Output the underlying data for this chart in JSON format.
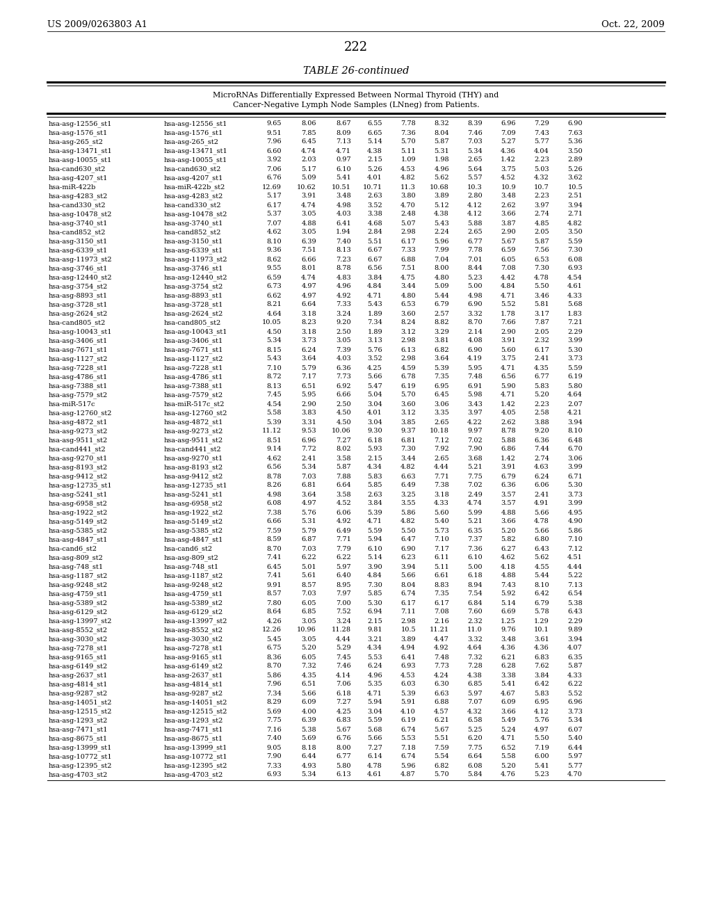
{
  "header_left": "US 2009/0263803 A1",
  "header_right": "Oct. 22, 2009",
  "page_number": "222",
  "table_title": "TABLE 26-continued",
  "table_subtitle1": "MicroRNAs Differentially Expressed Between Normal Thyroid (THY) and",
  "table_subtitle2": "Cancer-Negative Lymph Node Samples (LNneg) from Patients.",
  "rows": [
    [
      "hsa-asg-12556_st1",
      "hsa-asg-12556_st1",
      "9.65",
      "8.06",
      "8.67",
      "6.55",
      "7.78",
      "8.32",
      "8.39",
      "6.96",
      "7.29",
      "6.90"
    ],
    [
      "hsa-asg-1576_st1",
      "hsa-asg-1576_st1",
      "9.51",
      "7.85",
      "8.09",
      "6.65",
      "7.36",
      "8.04",
      "7.46",
      "7.09",
      "7.43",
      "7.63"
    ],
    [
      "hsa-asg-265_st2",
      "hsa-asg-265_st2",
      "7.96",
      "6.45",
      "7.13",
      "5.14",
      "5.70",
      "5.87",
      "7.03",
      "5.27",
      "5.77",
      "5.36"
    ],
    [
      "hsa-asg-13471_st1",
      "hsa-asg-13471_st1",
      "6.60",
      "4.74",
      "4.71",
      "4.38",
      "5.11",
      "5.31",
      "5.34",
      "4.36",
      "4.04",
      "3.50"
    ],
    [
      "hsa-asg-10055_st1",
      "hsa-asg-10055_st1",
      "3.92",
      "2.03",
      "0.97",
      "2.15",
      "1.09",
      "1.98",
      "2.65",
      "1.42",
      "2.23",
      "2.89"
    ],
    [
      "hsa-cand630_st2",
      "hsa-cand630_st2",
      "7.06",
      "5.17",
      "6.10",
      "5.26",
      "4.53",
      "4.96",
      "5.64",
      "3.75",
      "5.03",
      "5.26"
    ],
    [
      "hsa-asg-4207_st1",
      "hsa-asg-4207_st1",
      "6.76",
      "5.09",
      "5.41",
      "4.01",
      "4.82",
      "5.62",
      "5.57",
      "4.52",
      "4.32",
      "3.62"
    ],
    [
      "hsa-miR-422b",
      "hsa-miR-422b_st2",
      "12.69",
      "10.62",
      "10.51",
      "10.71",
      "11.3",
      "10.68",
      "10.3",
      "10.9",
      "10.7",
      "10.5"
    ],
    [
      "hsa-asg-4283_st2",
      "hsa-asg-4283_st2",
      "5.17",
      "3.91",
      "3.48",
      "2.63",
      "3.80",
      "3.89",
      "2.80",
      "3.48",
      "2.23",
      "2.51"
    ],
    [
      "hsa-cand330_st2",
      "hsa-cand330_st2",
      "6.17",
      "4.74",
      "4.98",
      "3.52",
      "4.70",
      "5.12",
      "4.12",
      "2.62",
      "3.97",
      "3.94"
    ],
    [
      "hsa-asg-10478_st2",
      "hsa-asg-10478_st2",
      "5.37",
      "3.05",
      "4.03",
      "3.38",
      "2.48",
      "4.38",
      "4.12",
      "3.66",
      "2.74",
      "2.71"
    ],
    [
      "hsa-asg-3740_st1",
      "hsa-asg-3740_st1",
      "7.07",
      "4.88",
      "6.41",
      "4.68",
      "5.07",
      "5.43",
      "5.88",
      "3.87",
      "4.85",
      "4.82"
    ],
    [
      "hsa-cand852_st2",
      "hsa-cand852_st2",
      "4.62",
      "3.05",
      "1.94",
      "2.84",
      "2.98",
      "2.24",
      "2.65",
      "2.90",
      "2.05",
      "3.50"
    ],
    [
      "hsa-asg-3150_st1",
      "hsa-asg-3150_st1",
      "8.10",
      "6.39",
      "7.40",
      "5.51",
      "6.17",
      "5.96",
      "6.77",
      "5.67",
      "5.87",
      "5.59"
    ],
    [
      "hsa-asg-6339_st1",
      "hsa-asg-6339_st1",
      "9.36",
      "7.51",
      "8.13",
      "6.67",
      "7.33",
      "7.99",
      "7.78",
      "6.59",
      "7.56",
      "7.30"
    ],
    [
      "hsa-asg-11973_st2",
      "hsa-asg-11973_st2",
      "8.62",
      "6.66",
      "7.23",
      "6.67",
      "6.88",
      "7.04",
      "7.01",
      "6.05",
      "6.53",
      "6.08"
    ],
    [
      "hsa-asg-3746_st1",
      "hsa-asg-3746_st1",
      "9.55",
      "8.01",
      "8.78",
      "6.56",
      "7.51",
      "8.00",
      "8.44",
      "7.08",
      "7.30",
      "6.93"
    ],
    [
      "hsa-asg-12440_st2",
      "hsa-asg-12440_st2",
      "6.59",
      "4.74",
      "4.83",
      "3.84",
      "4.75",
      "4.80",
      "5.23",
      "4.42",
      "4.78",
      "4.54"
    ],
    [
      "hsa-asg-3754_st2",
      "hsa-asg-3754_st2",
      "6.73",
      "4.97",
      "4.96",
      "4.84",
      "3.44",
      "5.09",
      "5.00",
      "4.84",
      "5.50",
      "4.61"
    ],
    [
      "hsa-asg-8893_st1",
      "hsa-asg-8893_st1",
      "6.62",
      "4.97",
      "4.92",
      "4.71",
      "4.80",
      "5.44",
      "4.98",
      "4.71",
      "3.46",
      "4.33"
    ],
    [
      "hsa-asg-3728_st1",
      "hsa-asg-3728_st1",
      "8.21",
      "6.64",
      "7.33",
      "5.43",
      "6.53",
      "6.79",
      "6.90",
      "5.52",
      "5.81",
      "5.68"
    ],
    [
      "hsa-asg-2624_st2",
      "hsa-asg-2624_st2",
      "4.64",
      "3.18",
      "3.24",
      "1.89",
      "3.60",
      "2.57",
      "3.32",
      "1.78",
      "3.17",
      "1.83"
    ],
    [
      "hsa-cand805_st2",
      "hsa-cand805_st2",
      "10.05",
      "8.23",
      "9.20",
      "7.34",
      "8.24",
      "8.82",
      "8.70",
      "7.66",
      "7.87",
      "7.21"
    ],
    [
      "hsa-asg-10043_st1",
      "hsa-asg-10043_st1",
      "4.50",
      "3.18",
      "2.50",
      "1.89",
      "3.12",
      "3.29",
      "2.14",
      "2.90",
      "2.05",
      "2.29"
    ],
    [
      "hsa-asg-3406_st1",
      "hsa-asg-3406_st1",
      "5.34",
      "3.73",
      "3.05",
      "3.13",
      "2.98",
      "3.81",
      "4.08",
      "3.91",
      "2.32",
      "3.99"
    ],
    [
      "hsa-asg-7671_st1",
      "hsa-asg-7671_st1",
      "8.15",
      "6.24",
      "7.39",
      "5.76",
      "6.13",
      "6.82",
      "6.90",
      "5.60",
      "6.17",
      "5.30"
    ],
    [
      "hsa-asg-1127_st2",
      "hsa-asg-1127_st2",
      "5.43",
      "3.64",
      "4.03",
      "3.52",
      "2.98",
      "3.64",
      "4.19",
      "3.75",
      "2.41",
      "3.73"
    ],
    [
      "hsa-asg-7228_st1",
      "hsa-asg-7228_st1",
      "7.10",
      "5.79",
      "6.36",
      "4.25",
      "4.59",
      "5.39",
      "5.95",
      "4.71",
      "4.35",
      "5.59"
    ],
    [
      "hsa-asg-4786_st1",
      "hsa-asg-4786_st1",
      "8.72",
      "7.17",
      "7.73",
      "5.66",
      "6.78",
      "7.35",
      "7.48",
      "6.56",
      "6.77",
      "6.19"
    ],
    [
      "hsa-asg-7388_st1",
      "hsa-asg-7388_st1",
      "8.13",
      "6.51",
      "6.92",
      "5.47",
      "6.19",
      "6.95",
      "6.91",
      "5.90",
      "5.83",
      "5.80"
    ],
    [
      "hsa-asg-7579_st2",
      "hsa-asg-7579_st2",
      "7.45",
      "5.95",
      "6.66",
      "5.04",
      "5.70",
      "6.45",
      "5.98",
      "4.71",
      "5.20",
      "4.64"
    ],
    [
      "hsa-miR-517c",
      "hsa-miR-517c_st2",
      "4.54",
      "2.90",
      "2.50",
      "3.04",
      "3.60",
      "3.06",
      "3.43",
      "1.42",
      "2.23",
      "2.07"
    ],
    [
      "hsa-asg-12760_st2",
      "hsa-asg-12760_st2",
      "5.58",
      "3.83",
      "4.50",
      "4.01",
      "3.12",
      "3.35",
      "3.97",
      "4.05",
      "2.58",
      "4.21"
    ],
    [
      "hsa-asg-4872_st1",
      "hsa-asg-4872_st1",
      "5.39",
      "3.31",
      "4.50",
      "3.04",
      "3.85",
      "2.65",
      "4.22",
      "2.62",
      "3.88",
      "3.94"
    ],
    [
      "hsa-asg-9273_st2",
      "hsa-asg-9273_st2",
      "11.12",
      "9.53",
      "10.06",
      "9.30",
      "9.37",
      "10.18",
      "9.97",
      "8.78",
      "9.20",
      "8.10"
    ],
    [
      "hsa-asg-9511_st2",
      "hsa-asg-9511_st2",
      "8.51",
      "6.96",
      "7.27",
      "6.18",
      "6.81",
      "7.12",
      "7.02",
      "5.88",
      "6.36",
      "6.48"
    ],
    [
      "hsa-cand441_st2",
      "hsa-cand441_st2",
      "9.14",
      "7.72",
      "8.02",
      "5.93",
      "7.30",
      "7.92",
      "7.90",
      "6.86",
      "7.44",
      "6.70"
    ],
    [
      "hsa-asg-9270_st1",
      "hsa-asg-9270_st1",
      "4.62",
      "2.41",
      "3.58",
      "2.15",
      "3.44",
      "2.65",
      "3.68",
      "1.42",
      "2.74",
      "3.06"
    ],
    [
      "hsa-asg-8193_st2",
      "hsa-asg-8193_st2",
      "6.56",
      "5.34",
      "5.87",
      "4.34",
      "4.82",
      "4.44",
      "5.21",
      "3.91",
      "4.63",
      "3.99"
    ],
    [
      "hsa-asg-9412_st2",
      "hsa-asg-9412_st2",
      "8.78",
      "7.03",
      "7.88",
      "5.83",
      "6.63",
      "7.71",
      "7.75",
      "6.79",
      "6.24",
      "6.71"
    ],
    [
      "hsa-asg-12735_st1",
      "hsa-asg-12735_st1",
      "8.26",
      "6.81",
      "6.64",
      "5.85",
      "6.49",
      "7.38",
      "7.02",
      "6.36",
      "6.06",
      "5.30"
    ],
    [
      "hsa-asg-5241_st1",
      "hsa-asg-5241_st1",
      "4.98",
      "3.64",
      "3.58",
      "2.63",
      "3.25",
      "3.18",
      "2.49",
      "3.57",
      "2.41",
      "3.73"
    ],
    [
      "hsa-asg-6958_st2",
      "hsa-asg-6958_st2",
      "6.08",
      "4.97",
      "4.52",
      "3.84",
      "3.55",
      "4.33",
      "4.74",
      "3.57",
      "4.91",
      "3.99"
    ],
    [
      "hsa-asg-1922_st2",
      "hsa-asg-1922_st2",
      "7.38",
      "5.76",
      "6.06",
      "5.39",
      "5.86",
      "5.60",
      "5.99",
      "4.88",
      "5.66",
      "4.95"
    ],
    [
      "hsa-asg-5149_st2",
      "hsa-asg-5149_st2",
      "6.66",
      "5.31",
      "4.92",
      "4.71",
      "4.82",
      "5.40",
      "5.21",
      "3.66",
      "4.78",
      "4.90"
    ],
    [
      "hsa-asg-5385_st2",
      "hsa-asg-5385_st2",
      "7.59",
      "5.79",
      "6.49",
      "5.59",
      "5.50",
      "5.73",
      "6.35",
      "5.20",
      "5.66",
      "5.86"
    ],
    [
      "hsa-asg-4847_st1",
      "hsa-asg-4847_st1",
      "8.59",
      "6.87",
      "7.71",
      "5.94",
      "6.47",
      "7.10",
      "7.37",
      "5.82",
      "6.80",
      "7.10"
    ],
    [
      "hsa-cand6_st2",
      "hsa-cand6_st2",
      "8.70",
      "7.03",
      "7.79",
      "6.10",
      "6.90",
      "7.17",
      "7.36",
      "6.27",
      "6.43",
      "7.12"
    ],
    [
      "hsa-asg-809_st2",
      "hsa-asg-809_st2",
      "7.41",
      "6.22",
      "6.22",
      "5.14",
      "6.23",
      "6.11",
      "6.10",
      "4.62",
      "5.62",
      "4.51"
    ],
    [
      "hsa-asg-748_st1",
      "hsa-asg-748_st1",
      "6.45",
      "5.01",
      "5.97",
      "3.90",
      "3.94",
      "5.11",
      "5.00",
      "4.18",
      "4.55",
      "4.44"
    ],
    [
      "hsa-asg-1187_st2",
      "hsa-asg-1187_st2",
      "7.41",
      "5.61",
      "6.40",
      "4.84",
      "5.66",
      "6.61",
      "6.18",
      "4.88",
      "5.44",
      "5.22"
    ],
    [
      "hsa-asg-9248_st2",
      "hsa-asg-9248_st2",
      "9.91",
      "8.57",
      "8.95",
      "7.30",
      "8.04",
      "8.83",
      "8.94",
      "7.43",
      "8.10",
      "7.13"
    ],
    [
      "hsa-asg-4759_st1",
      "hsa-asg-4759_st1",
      "8.57",
      "7.03",
      "7.97",
      "5.85",
      "6.74",
      "7.35",
      "7.54",
      "5.92",
      "6.42",
      "6.54"
    ],
    [
      "hsa-asg-5389_st2",
      "hsa-asg-5389_st2",
      "7.80",
      "6.05",
      "7.00",
      "5.30",
      "6.17",
      "6.17",
      "6.84",
      "5.14",
      "6.79",
      "5.38"
    ],
    [
      "hsa-asg-6129_st2",
      "hsa-asg-6129_st2",
      "8.64",
      "6.85",
      "7.52",
      "6.94",
      "7.11",
      "7.08",
      "7.60",
      "6.69",
      "5.78",
      "6.43"
    ],
    [
      "hsa-asg-13997_st2",
      "hsa-asg-13997_st2",
      "4.26",
      "3.05",
      "3.24",
      "2.15",
      "2.98",
      "2.16",
      "2.32",
      "1.25",
      "1.29",
      "2.29"
    ],
    [
      "hsa-asg-8552_st2",
      "hsa-asg-8552_st2",
      "12.26",
      "10.96",
      "11.28",
      "9.81",
      "10.5",
      "11.21",
      "11.0",
      "9.76",
      "10.1",
      "9.89"
    ],
    [
      "hsa-asg-3030_st2",
      "hsa-asg-3030_st2",
      "5.45",
      "3.05",
      "4.44",
      "3.21",
      "3.89",
      "4.47",
      "3.32",
      "3.48",
      "3.61",
      "3.94"
    ],
    [
      "hsa-asg-7278_st1",
      "hsa-asg-7278_st1",
      "6.75",
      "5.20",
      "5.29",
      "4.34",
      "4.94",
      "4.92",
      "4.64",
      "4.36",
      "4.36",
      "4.07"
    ],
    [
      "hsa-asg-9165_st1",
      "hsa-asg-9165_st1",
      "8.36",
      "6.05",
      "7.45",
      "5.53",
      "6.41",
      "7.48",
      "7.32",
      "6.21",
      "6.83",
      "6.35"
    ],
    [
      "hsa-asg-6149_st2",
      "hsa-asg-6149_st2",
      "8.70",
      "7.32",
      "7.46",
      "6.24",
      "6.93",
      "7.73",
      "7.28",
      "6.28",
      "7.62",
      "5.87"
    ],
    [
      "hsa-asg-2637_st1",
      "hsa-asg-2637_st1",
      "5.86",
      "4.35",
      "4.14",
      "4.96",
      "4.53",
      "4.24",
      "4.38",
      "3.38",
      "3.84",
      "4.33"
    ],
    [
      "hsa-asg-4814_st1",
      "hsa-asg-4814_st1",
      "7.96",
      "6.51",
      "7.06",
      "5.35",
      "6.03",
      "6.30",
      "6.85",
      "5.41",
      "6.42",
      "6.22"
    ],
    [
      "hsa-asg-9287_st2",
      "hsa-asg-9287_st2",
      "7.34",
      "5.66",
      "6.18",
      "4.71",
      "5.39",
      "6.63",
      "5.97",
      "4.67",
      "5.83",
      "5.52"
    ],
    [
      "hsa-asg-14051_st2",
      "hsa-asg-14051_st2",
      "8.29",
      "6.09",
      "7.27",
      "5.94",
      "5.91",
      "6.88",
      "7.07",
      "6.09",
      "6.95",
      "6.96"
    ],
    [
      "hsa-asg-12515_st2",
      "hsa-asg-12515_st2",
      "5.69",
      "4.00",
      "4.25",
      "3.04",
      "4.10",
      "4.57",
      "4.32",
      "3.66",
      "4.12",
      "3.73"
    ],
    [
      "hsa-asg-1293_st2",
      "hsa-asg-1293_st2",
      "7.75",
      "6.39",
      "6.83",
      "5.59",
      "6.19",
      "6.21",
      "6.58",
      "5.49",
      "5.76",
      "5.34"
    ],
    [
      "hsa-asg-7471_st1",
      "hsa-asg-7471_st1",
      "7.16",
      "5.38",
      "5.67",
      "5.68",
      "6.74",
      "5.67",
      "5.25",
      "5.24",
      "4.97",
      "6.07"
    ],
    [
      "hsa-asg-8675_st1",
      "hsa-asg-8675_st1",
      "7.40",
      "5.69",
      "6.76",
      "5.66",
      "5.53",
      "5.51",
      "6.20",
      "4.71",
      "5.50",
      "5.40"
    ],
    [
      "hsa-asg-13999_st1",
      "hsa-asg-13999_st1",
      "9.05",
      "8.18",
      "8.00",
      "7.27",
      "7.18",
      "7.59",
      "7.75",
      "6.52",
      "7.19",
      "6.44"
    ],
    [
      "hsa-asg-10772_st1",
      "hsa-asg-10772_st1",
      "7.90",
      "6.44",
      "6.77",
      "6.14",
      "6.74",
      "5.54",
      "6.64",
      "5.58",
      "6.00",
      "5.97"
    ],
    [
      "hsa-asg-12395_st2",
      "hsa-asg-12395_st2",
      "7.33",
      "4.93",
      "5.80",
      "4.78",
      "5.96",
      "6.82",
      "6.08",
      "5.20",
      "5.41",
      "5.77"
    ],
    [
      "hsa-asg-4703_st2",
      "hsa-asg-4703_st2",
      "6.93",
      "5.34",
      "6.13",
      "4.61",
      "4.87",
      "5.70",
      "5.84",
      "4.76",
      "5.23",
      "4.70"
    ]
  ]
}
